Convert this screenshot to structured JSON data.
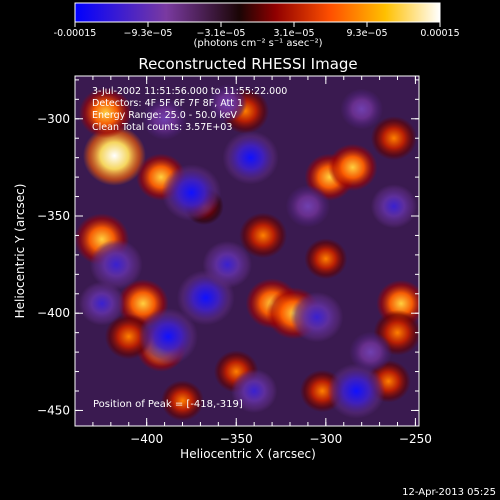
{
  "colorbar": {
    "ticks": [
      "-0.00015",
      "−9.3e−05",
      "−3.1e−05",
      "3.1e−05",
      "9.3e−05",
      "0.00015"
    ],
    "units": "(photons cm⁻² s⁻¹ asec⁻²)",
    "min": -0.00015,
    "max": 0.00015
  },
  "title": "Reconstructed RHESSI Image",
  "info": {
    "line1": "3-Jul-2002 11:51:56.000 to 11:55:22.000",
    "line2": "Detectors: 4F 5F 6F 7F 8F, Att 1",
    "line3": "Energy Range: 25.0 - 50.0 keV",
    "line4": "Clean    Total counts: 3.57E+03"
  },
  "peak_text": "Position of Peak = [-418,-319]",
  "timestamp": "12-Apr-2013 05:25",
  "chart_data": {
    "type": "heatmap",
    "title": "Reconstructed RHESSI Image",
    "xlabel": "Heliocentric X (arcsec)",
    "ylabel": "Heliocentric Y (arcsec)",
    "xlim": [
      -440,
      -248
    ],
    "ylim": [
      -458,
      -278
    ],
    "xticks": [
      -400,
      -350,
      -300,
      -250
    ],
    "yticks": [
      -300,
      -350,
      -400,
      -450
    ],
    "colorscale": [
      "#0000ff",
      "#7a3aa0",
      "#000000",
      "#a00000",
      "#ff6000",
      "#ffd000",
      "#ffffff"
    ],
    "peak": [
      -418,
      -319
    ],
    "blobs": [
      {
        "x": -418,
        "y": -319,
        "v": 1.0
      },
      {
        "x": -423,
        "y": -297,
        "v": 0.7
      },
      {
        "x": -425,
        "y": -362,
        "v": 0.75
      },
      {
        "x": -392,
        "y": -330,
        "v": 0.6
      },
      {
        "x": -402,
        "y": -395,
        "v": 0.65
      },
      {
        "x": -392,
        "y": -418,
        "v": 0.6
      },
      {
        "x": -410,
        "y": -412,
        "v": 0.55
      },
      {
        "x": -345,
        "y": -296,
        "v": 0.55
      },
      {
        "x": -298,
        "y": -330,
        "v": 0.6
      },
      {
        "x": -285,
        "y": -325,
        "v": 0.6
      },
      {
        "x": -262,
        "y": -310,
        "v": 0.5
      },
      {
        "x": -330,
        "y": -395,
        "v": 0.7
      },
      {
        "x": -318,
        "y": -400,
        "v": 0.75
      },
      {
        "x": -258,
        "y": -395,
        "v": 0.6
      },
      {
        "x": -260,
        "y": -410,
        "v": 0.55
      },
      {
        "x": -335,
        "y": -360,
        "v": 0.55
      },
      {
        "x": -300,
        "y": -372,
        "v": 0.4
      },
      {
        "x": -350,
        "y": -430,
        "v": 0.45
      },
      {
        "x": -302,
        "y": -440,
        "v": 0.45
      },
      {
        "x": -368,
        "y": -345,
        "v": 0.3
      },
      {
        "x": -380,
        "y": -445,
        "v": 0.4
      },
      {
        "x": -265,
        "y": -435,
        "v": 0.45
      },
      {
        "x": -375,
        "y": -338,
        "v": -0.9
      },
      {
        "x": -388,
        "y": -412,
        "v": -0.9
      },
      {
        "x": -367,
        "y": -392,
        "v": -0.85
      },
      {
        "x": -342,
        "y": -320,
        "v": -0.8
      },
      {
        "x": -283,
        "y": -440,
        "v": -0.85
      },
      {
        "x": -305,
        "y": -402,
        "v": -0.7
      },
      {
        "x": -417,
        "y": -375,
        "v": -0.7
      },
      {
        "x": -262,
        "y": -345,
        "v": -0.5
      },
      {
        "x": -355,
        "y": -292,
        "v": -0.3
      },
      {
        "x": -275,
        "y": -420,
        "v": -0.4
      },
      {
        "x": -425,
        "y": -395,
        "v": -0.5
      },
      {
        "x": -355,
        "y": -375,
        "v": -0.6
      },
      {
        "x": -310,
        "y": -345,
        "v": -0.45
      },
      {
        "x": -340,
        "y": -440,
        "v": -0.5
      },
      {
        "x": -390,
        "y": -300,
        "v": -0.45
      },
      {
        "x": -280,
        "y": -295,
        "v": -0.4
      }
    ]
  }
}
